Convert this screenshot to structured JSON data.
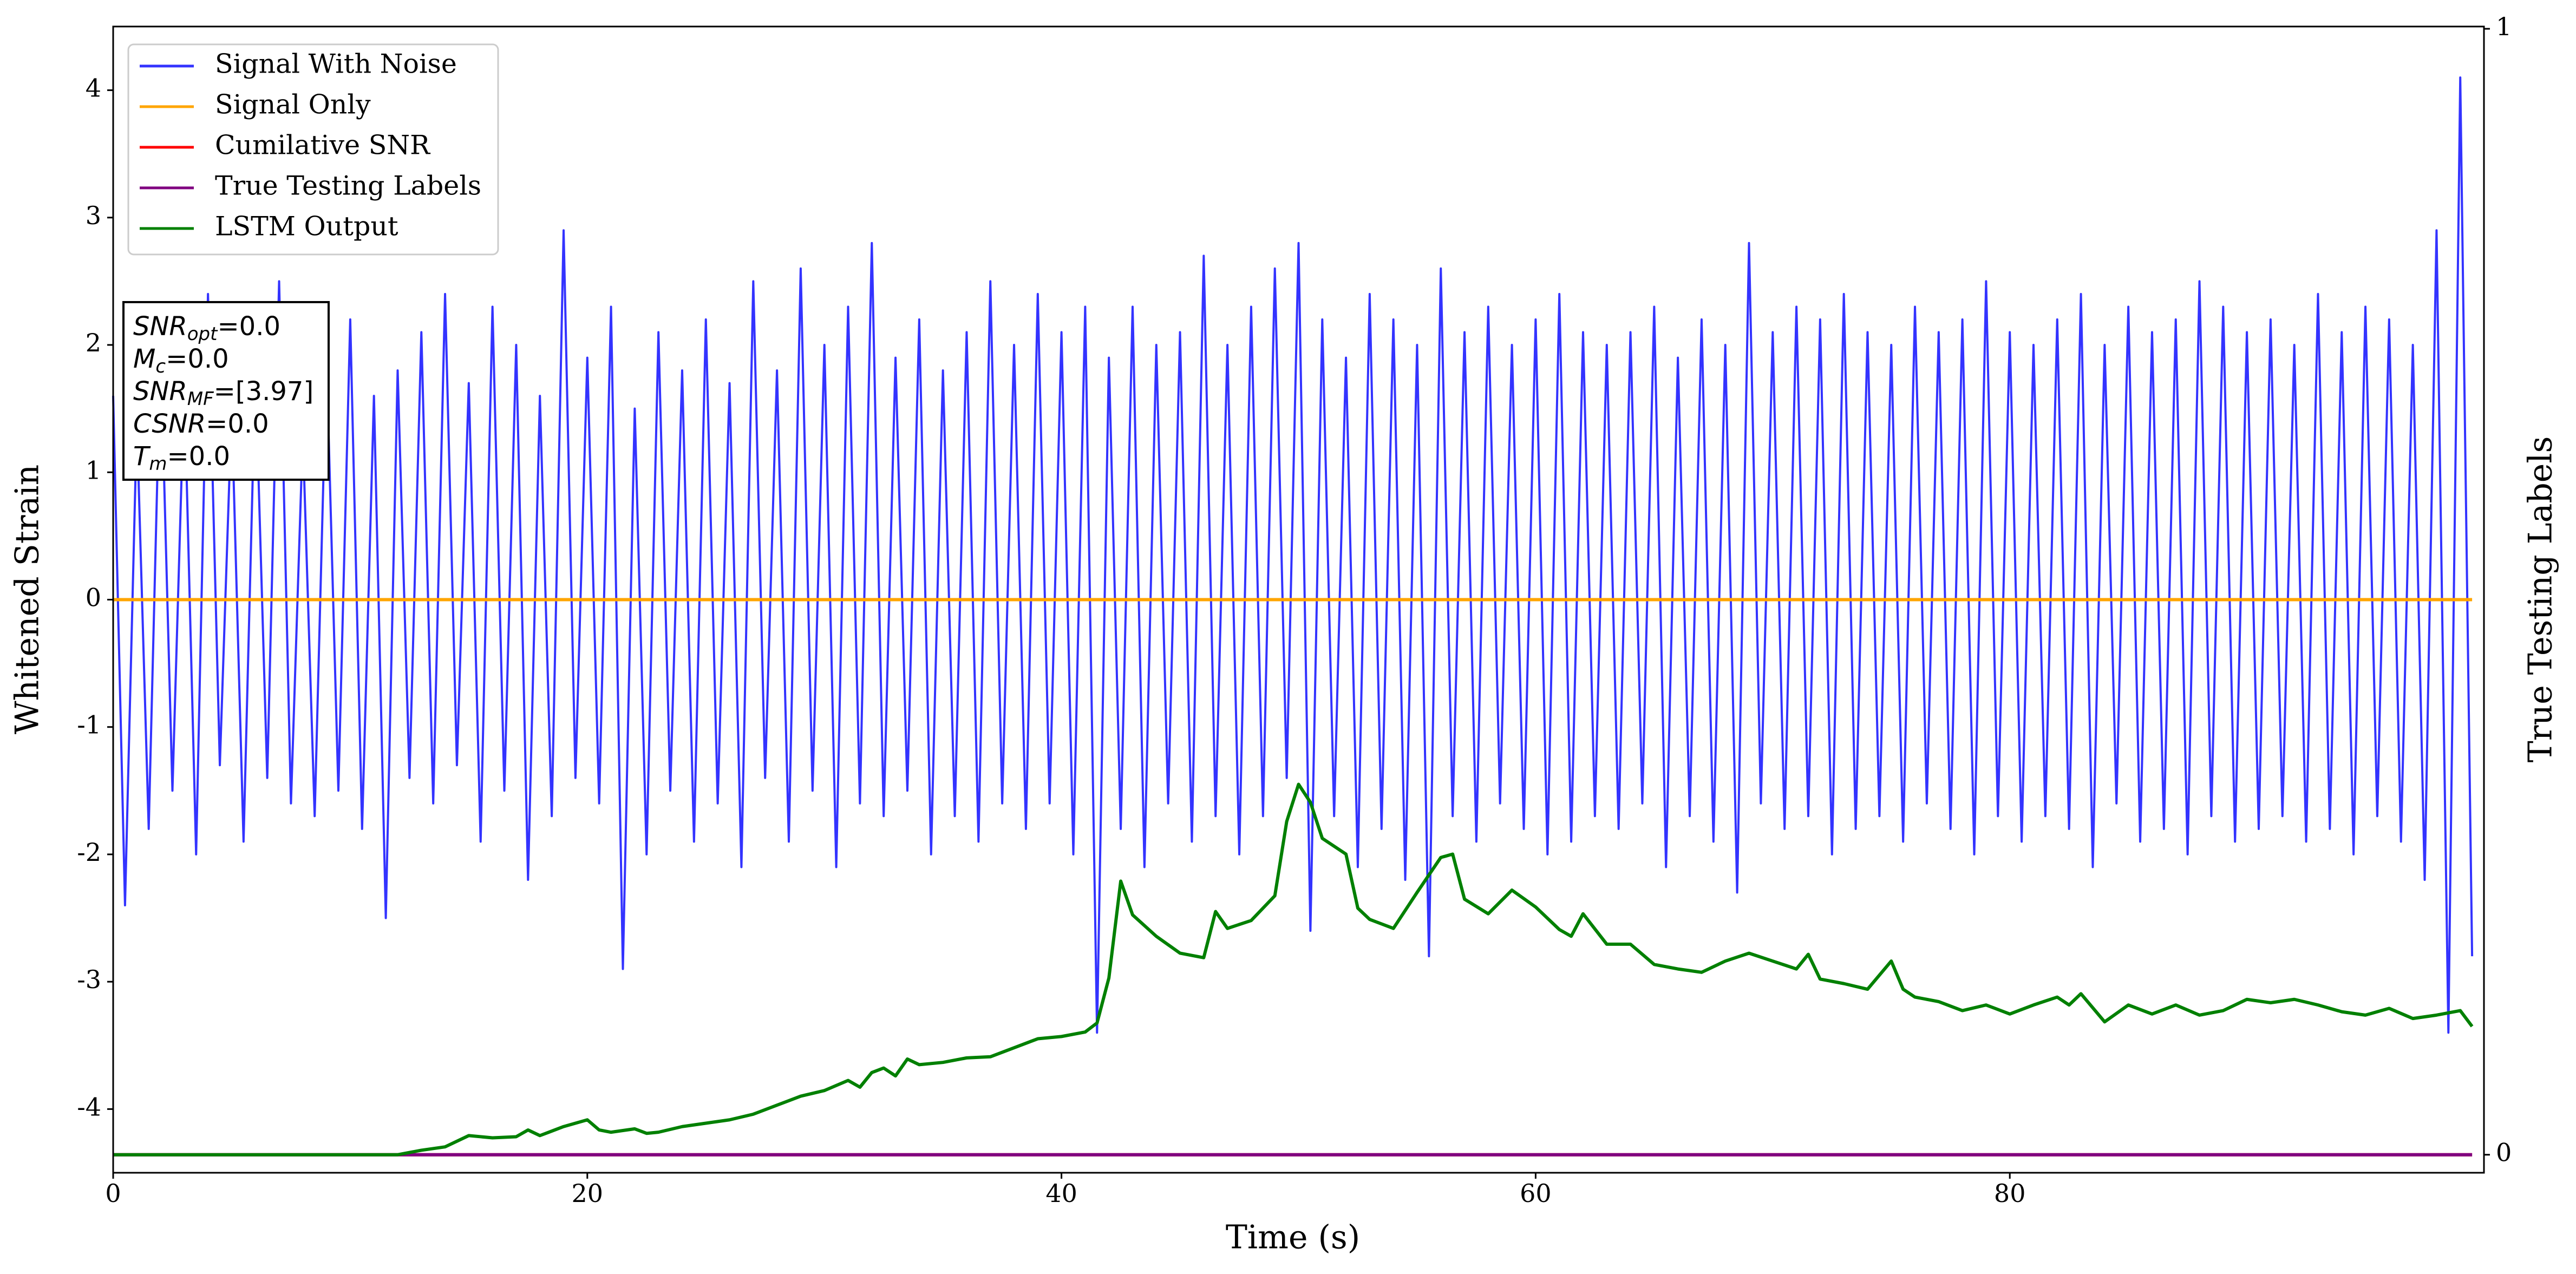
{
  "chart_data": {
    "type": "line",
    "xlabel": "Time (s)",
    "ylabel": "Whitened Strain",
    "y2label": "True Testing Labels",
    "xlim": [
      0,
      100
    ],
    "xticks": [
      0,
      20,
      40,
      60,
      80
    ],
    "ylim": [
      -4.5,
      4.5
    ],
    "yticks": [
      -4,
      -3,
      -2,
      -1,
      0,
      1,
      2,
      3,
      4
    ],
    "y2lim": [
      -0.016,
      1.002
    ],
    "y2ticks": [
      0,
      1
    ],
    "legend": "upper left",
    "series": [
      {
        "name": "Signal With Noise",
        "color": "#3333ff",
        "x": [
          0,
          0.5,
          1,
          1.5,
          2,
          2.5,
          3,
          3.5,
          4,
          4.5,
          5,
          5.5,
          6,
          6.5,
          7,
          7.5,
          8,
          8.5,
          9,
          9.5,
          10,
          10.5,
          11,
          11.5,
          12,
          12.5,
          13,
          13.5,
          14,
          14.5,
          15,
          15.5,
          16,
          16.5,
          17,
          17.5,
          18,
          18.5,
          19,
          19.5,
          20,
          20.5,
          21,
          21.5,
          22,
          22.5,
          23,
          23.5,
          24,
          24.5,
          25,
          25.5,
          26,
          26.5,
          27,
          27.5,
          28,
          28.5,
          29,
          29.5,
          30,
          30.5,
          31,
          31.5,
          32,
          32.5,
          33,
          33.5,
          34,
          34.5,
          35,
          35.5,
          36,
          36.5,
          37,
          37.5,
          38,
          38.5,
          39,
          39.5,
          40,
          40.5,
          41,
          41.5,
          42,
          42.5,
          43,
          43.5,
          44,
          44.5,
          45,
          45.5,
          46,
          46.5,
          47,
          47.5,
          48,
          48.5,
          49,
          49.5,
          50,
          50.5,
          51,
          51.5,
          52,
          52.5,
          53,
          53.5,
          54,
          54.5,
          55,
          55.5,
          56,
          56.5,
          57,
          57.5,
          58,
          58.5,
          59,
          59.5,
          60,
          60.5,
          61,
          61.5,
          62,
          62.5,
          63,
          63.5,
          64,
          64.5,
          65,
          65.5,
          66,
          66.5,
          67,
          67.5,
          68,
          68.5,
          69,
          69.5,
          70,
          70.5,
          71,
          71.5,
          72,
          72.5,
          73,
          73.5,
          74,
          74.5,
          75,
          75.5,
          76,
          76.5,
          77,
          77.5,
          78,
          78.5,
          79,
          79.5,
          80,
          80.5,
          81,
          81.5,
          82,
          82.5,
          83,
          83.5,
          84,
          84.5,
          85,
          85.5,
          86,
          86.5,
          87,
          87.5,
          88,
          88.5,
          89,
          89.5,
          90,
          90.5,
          91,
          91.5,
          92,
          92.5,
          93,
          93.5,
          94,
          94.5,
          95,
          95.5,
          96,
          96.5,
          97,
          97.5,
          98,
          98.5,
          99,
          99.5
        ],
        "values": [
          1.6,
          -2.4,
          1.4,
          -1.8,
          2.0,
          -1.5,
          1.7,
          -2.0,
          2.4,
          -1.3,
          1.5,
          -1.9,
          1.8,
          -1.4,
          2.5,
          -1.6,
          1.3,
          -1.7,
          1.9,
          -1.5,
          2.2,
          -1.8,
          1.6,
          -2.5,
          1.8,
          -1.4,
          2.1,
          -1.6,
          2.4,
          -1.3,
          1.7,
          -1.9,
          2.3,
          -1.5,
          2.0,
          -2.2,
          1.6,
          -1.7,
          2.9,
          -1.4,
          1.9,
          -1.6,
          2.3,
          -2.9,
          1.5,
          -2.0,
          2.1,
          -1.5,
          1.8,
          -1.9,
          2.2,
          -1.6,
          1.7,
          -2.1,
          2.5,
          -1.4,
          1.8,
          -1.9,
          2.6,
          -1.5,
          2.0,
          -2.1,
          2.3,
          -1.6,
          2.8,
          -1.7,
          1.9,
          -1.5,
          2.2,
          -2.0,
          1.8,
          -1.7,
          2.1,
          -1.9,
          2.5,
          -1.6,
          2.0,
          -1.8,
          2.4,
          -1.6,
          2.1,
          -2.0,
          2.3,
          -3.4,
          1.9,
          -1.8,
          2.3,
          -2.1,
          2.0,
          -1.6,
          2.1,
          -1.9,
          2.7,
          -1.7,
          2.0,
          -2.0,
          2.3,
          -1.7,
          2.6,
          -1.4,
          2.8,
          -2.6,
          2.2,
          -1.7,
          1.9,
          -2.1,
          2.4,
          -1.8,
          2.2,
          -2.2,
          2.0,
          -2.8,
          2.6,
          -1.7,
          2.1,
          -1.9,
          2.3,
          -1.6,
          2.0,
          -1.8,
          2.2,
          -2.0,
          2.4,
          -1.9,
          2.1,
          -1.7,
          2.0,
          -1.8,
          2.1,
          -1.6,
          2.3,
          -2.1,
          1.9,
          -1.7,
          2.2,
          -1.9,
          2.0,
          -2.3,
          2.8,
          -1.6,
          2.1,
          -1.8,
          2.3,
          -1.7,
          2.2,
          -2.0,
          2.4,
          -1.8,
          2.1,
          -1.7,
          2.0,
          -1.9,
          2.3,
          -1.6,
          2.1,
          -1.8,
          2.2,
          -2.0,
          2.5,
          -1.7,
          2.1,
          -1.9,
          2.0,
          -1.7,
          2.2,
          -1.8,
          2.4,
          -2.1,
          2.0,
          -1.6,
          2.3,
          -1.9,
          2.1,
          -1.8,
          2.2,
          -2.0,
          2.5,
          -1.7,
          2.3,
          -1.9,
          2.1,
          -1.8,
          2.2,
          -1.7,
          2.0,
          -1.9,
          2.4,
          -1.8,
          2.1,
          -2.0,
          2.3,
          -1.7,
          2.2,
          -1.9,
          2.0,
          -2.2,
          2.9,
          -3.4,
          4.1,
          -2.8
        ]
      },
      {
        "name": "Signal Only",
        "color": "#ffa500",
        "x": [
          0,
          99.5
        ],
        "values": [
          0,
          0
        ]
      },
      {
        "name": "Cumilative SNR",
        "color": "#ff0000",
        "axis": "y2",
        "x": [
          0,
          99.5
        ],
        "values": [
          0,
          0
        ]
      },
      {
        "name": "True Testing Labels",
        "color": "#800080",
        "axis": "y2",
        "x": [
          0,
          99.5
        ],
        "values": [
          0,
          0
        ]
      },
      {
        "name": "LSTM Output",
        "color": "#008000",
        "axis": "y2",
        "x": [
          0,
          12,
          13,
          14,
          15,
          16,
          17,
          17.5,
          18,
          19,
          20,
          20.5,
          21,
          22,
          22.5,
          23,
          24,
          25,
          26,
          27,
          28,
          29,
          30,
          31,
          31.5,
          32,
          32.5,
          33,
          33.5,
          34,
          35,
          36,
          37,
          38,
          39,
          40,
          41,
          41.5,
          42,
          42.5,
          43,
          44,
          45,
          46,
          46.5,
          47,
          48,
          49,
          49.5,
          50,
          50.5,
          51,
          52,
          52.5,
          53,
          54,
          55,
          56,
          56.5,
          57,
          58,
          59,
          60,
          61,
          61.5,
          62,
          63,
          64,
          65,
          66,
          67,
          68,
          69,
          70,
          71,
          71.5,
          72,
          73,
          74,
          75,
          75.5,
          76,
          77,
          78,
          79,
          80,
          81,
          82,
          82.5,
          83,
          84,
          85,
          86,
          87,
          88,
          89,
          90,
          91,
          92,
          93,
          94,
          95,
          96,
          97,
          98,
          99,
          99.5
        ],
        "values": [
          0,
          0,
          0.004,
          0.007,
          0.017,
          0.015,
          0.016,
          0.022,
          0.017,
          0.025,
          0.031,
          0.022,
          0.02,
          0.023,
          0.019,
          0.02,
          0.025,
          0.028,
          0.031,
          0.036,
          0.044,
          0.052,
          0.057,
          0.066,
          0.06,
          0.073,
          0.077,
          0.07,
          0.085,
          0.08,
          0.082,
          0.086,
          0.087,
          0.095,
          0.103,
          0.105,
          0.109,
          0.117,
          0.157,
          0.243,
          0.213,
          0.194,
          0.179,
          0.175,
          0.216,
          0.201,
          0.208,
          0.23,
          0.296,
          0.329,
          0.313,
          0.281,
          0.267,
          0.219,
          0.209,
          0.201,
          0.233,
          0.264,
          0.267,
          0.227,
          0.214,
          0.235,
          0.22,
          0.2,
          0.194,
          0.214,
          0.187,
          0.187,
          0.169,
          0.165,
          0.162,
          0.172,
          0.179,
          0.172,
          0.165,
          0.178,
          0.156,
          0.152,
          0.147,
          0.172,
          0.147,
          0.14,
          0.136,
          0.128,
          0.133,
          0.125,
          0.133,
          0.14,
          0.133,
          0.143,
          0.118,
          0.133,
          0.125,
          0.133,
          0.124,
          0.128,
          0.138,
          0.135,
          0.138,
          0.133,
          0.127,
          0.124,
          0.13,
          0.121,
          0.124,
          0.128,
          0.114
        ]
      }
    ],
    "annotation": [
      {
        "label": "SNR",
        "sub": "opt",
        "value": "=0.0"
      },
      {
        "label": "M",
        "sub": "c",
        "value": "=0.0"
      },
      {
        "label": "SNR",
        "sub": "MF",
        "value": "=[3.97]"
      },
      {
        "label": "CSNR",
        "value": "=0.0"
      },
      {
        "label": "T",
        "sub": "m",
        "value": "=0.0"
      }
    ]
  }
}
